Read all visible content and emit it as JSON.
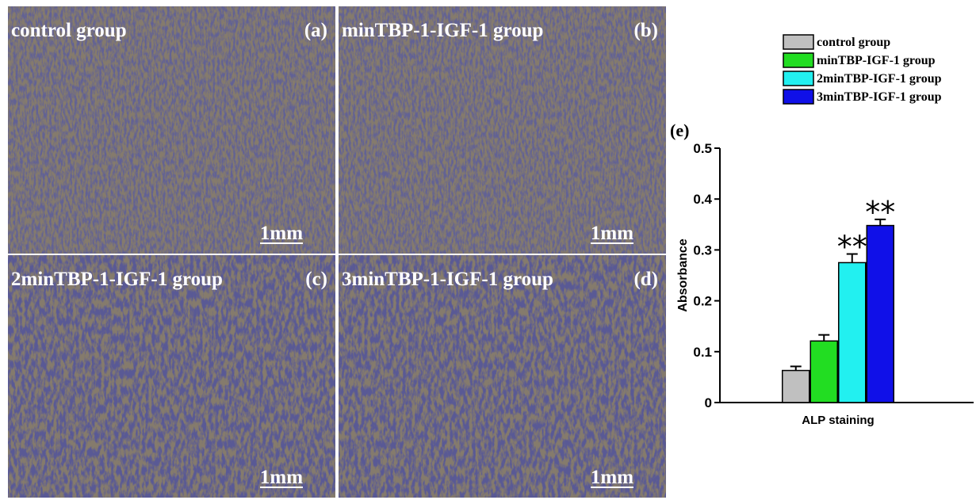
{
  "panels": [
    {
      "title": "control group",
      "label": "(a)",
      "scale": "1mm"
    },
    {
      "title": "minTBP-1-IGF-1 group",
      "label": "(b)",
      "scale": "1mm"
    },
    {
      "title": "2minTBP-1-IGF-1 group",
      "label": "(c)",
      "scale": "1mm"
    },
    {
      "title": "3minTBP-1-IGF-1 group",
      "label": "(d)",
      "scale": "1mm"
    }
  ],
  "chart_data": {
    "type": "bar",
    "label": "(e)",
    "ylabel": "Absorbance",
    "categories": [
      "ALP staining"
    ],
    "series": [
      {
        "name": "control group",
        "color": "#c0c0c0",
        "values": [
          0.063
        ],
        "errors": [
          0.008
        ]
      },
      {
        "name": "minTBP-IGF-1 group",
        "color": "#22dd22",
        "values": [
          0.121
        ],
        "errors": [
          0.012
        ]
      },
      {
        "name": "2minTBP-IGF-1 group",
        "color": "#22f0f0",
        "values": [
          0.275
        ],
        "errors": [
          0.017
        ],
        "annotation": "**"
      },
      {
        "name": "3minTBP-IGF-1 group",
        "color": "#1010e8",
        "values": [
          0.348
        ],
        "errors": [
          0.012
        ],
        "annotation": "**"
      }
    ],
    "ylim": [
      0,
      0.5
    ],
    "yticks": [
      0,
      0.1,
      0.2,
      0.3,
      0.4,
      0.5
    ]
  }
}
